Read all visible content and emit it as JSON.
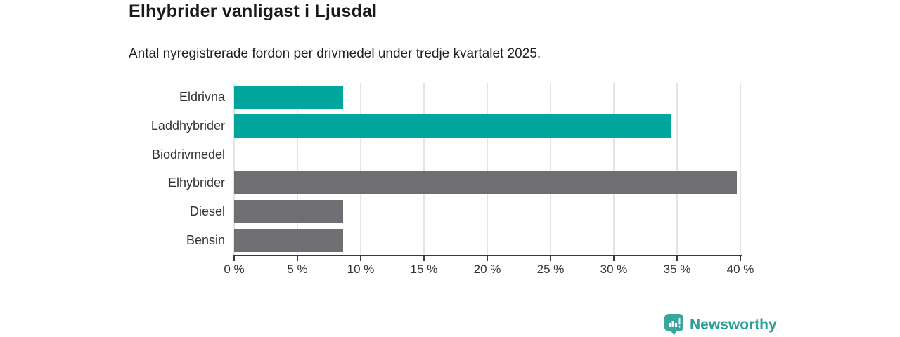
{
  "chart_data": {
    "type": "bar",
    "orientation": "horizontal",
    "title": "Elhybrider vanligast i Ljusdal",
    "subtitle": "Antal nyregistrerade fordon per drivmedel under tredje kvartalet 2025.",
    "categories": [
      "Eldrivna",
      "Laddhybrider",
      "Biodrivmedel",
      "Elhybrider",
      "Diesel",
      "Bensin"
    ],
    "values": [
      8.6,
      34.5,
      0,
      39.7,
      8.6,
      8.6
    ],
    "bar_colors": [
      "#00a69c",
      "#00a69c",
      "#00a69c",
      "#6e6e73",
      "#6e6e73",
      "#6e6e73"
    ],
    "xlim": [
      0,
      40
    ],
    "x_ticks": [
      0,
      5,
      10,
      15,
      20,
      25,
      30,
      35,
      40
    ],
    "x_tick_labels": [
      "0 %",
      "5 %",
      "10 %",
      "15 %",
      "20 %",
      "25 %",
      "30 %",
      "35 %",
      "40 %"
    ],
    "grid": true,
    "legend": false,
    "xlabel": "",
    "ylabel": ""
  },
  "colors": {
    "teal": "#00a69c",
    "gray": "#6e6e73",
    "grid": "#e4e4e6",
    "axis": "#3a3a3a",
    "text": "#333333",
    "brand": "#2b9e97",
    "brand_icon": "#38a69e"
  },
  "footer": {
    "brand": "Newsworthy"
  }
}
